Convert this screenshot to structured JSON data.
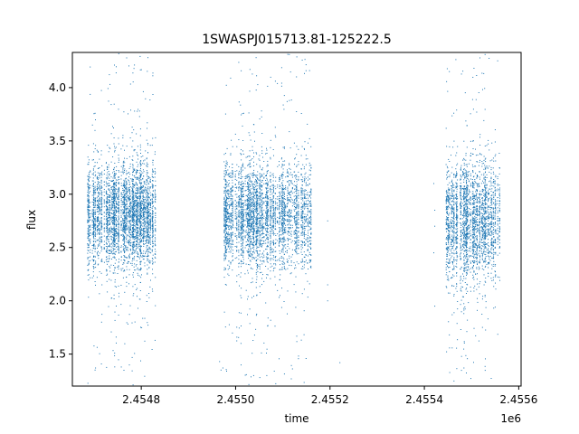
{
  "chart_data": {
    "type": "scatter",
    "title": "1SWASPJ015713.81-125222.5",
    "xlabel": "time",
    "ylabel": "flux",
    "x_offset_label": "1e6",
    "xlim": [
      2454654,
      2455605
    ],
    "ylim": [
      1.2,
      4.33
    ],
    "x_ticks": [
      2.4548,
      2.455,
      2.4552,
      2.4554,
      2.4556
    ],
    "x_tick_labels": [
      "2.4548",
      "2.4550",
      "2.4552",
      "2.4554",
      "2.4556"
    ],
    "y_ticks": [
      1.5,
      2.0,
      2.5,
      3.0,
      3.5,
      4.0
    ],
    "y_tick_labels": [
      "1.5",
      "2.0",
      "2.5",
      "3.0",
      "3.5",
      "4.0"
    ],
    "grid": false,
    "marker_color": "#1f77b4",
    "series": [
      {
        "clusters": [
          {
            "x_start": 2454686,
            "x_end": 2454830,
            "median": 2.8,
            "spread": 0.25,
            "count": 3800
          },
          {
            "x_start": 2454975,
            "x_end": 2455160,
            "median": 2.8,
            "spread": 0.25,
            "count": 3800
          },
          {
            "x_start": 2455445,
            "x_end": 2455560,
            "median": 2.75,
            "spread": 0.28,
            "count": 2600
          }
        ],
        "isolated_points": [
          [
            2454966,
            1.43
          ],
          [
            2454969,
            1.35
          ],
          [
            2454973,
            1.37
          ],
          [
            2454981,
            1.34
          ],
          [
            2455195,
            2.0
          ],
          [
            2455195,
            2.15
          ],
          [
            2455195,
            2.75
          ],
          [
            2455221,
            1.42
          ],
          [
            2455420,
            3.1
          ],
          [
            2455420,
            2.45
          ],
          [
            2455422,
            2.7
          ],
          [
            2455422,
            1.95
          ],
          [
            2455422,
            2.85
          ],
          [
            2454703,
            1.37
          ],
          [
            2455082,
            1.34
          ]
        ]
      }
    ]
  }
}
